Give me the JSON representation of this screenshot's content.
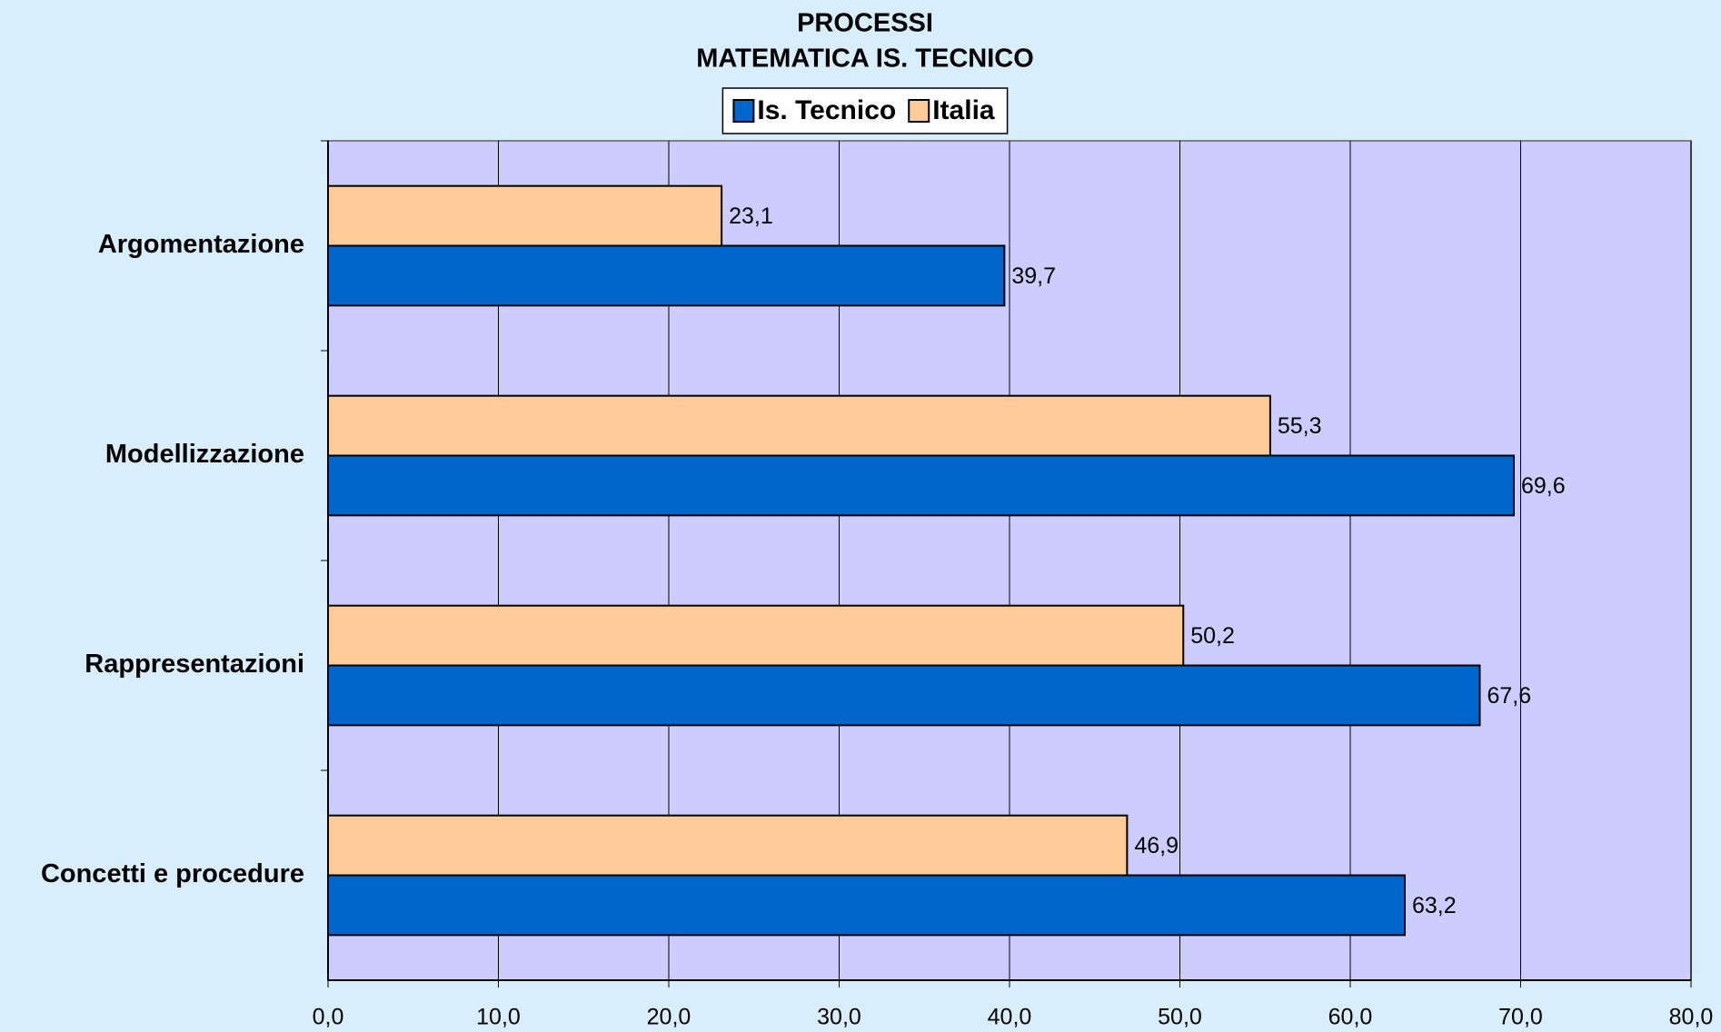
{
  "chart_data": {
    "type": "hbar",
    "title": [
      "PROCESSI",
      "MATEMATICA IS. TECNICO"
    ],
    "categories": [
      "Argomentazione",
      "Modellizzazione",
      "Rappresentazioni",
      "Concetti e procedure"
    ],
    "series": [
      {
        "name": "Is. Tecnico",
        "color": "#0066cc",
        "values": [
          39.7,
          69.6,
          67.6,
          63.2
        ],
        "value_labels": [
          "39,7",
          "69,6",
          "67,6",
          "63,2"
        ]
      },
      {
        "name": "Italia",
        "color": "#ffcc99",
        "values": [
          23.1,
          55.3,
          50.2,
          46.9
        ],
        "value_labels": [
          "23,1",
          "55,3",
          "50,2",
          "46,9"
        ]
      }
    ],
    "xlim": [
      0,
      80
    ],
    "xticks": [
      {
        "value": 0,
        "label": "0,0"
      },
      {
        "value": 10,
        "label": "10,0"
      },
      {
        "value": 20,
        "label": "20,0"
      },
      {
        "value": 30,
        "label": "30,0"
      },
      {
        "value": 40,
        "label": "40,0"
      },
      {
        "value": 50,
        "label": "50,0"
      },
      {
        "value": 60,
        "label": "60,0"
      },
      {
        "value": 70,
        "label": "70,0"
      },
      {
        "value": 80,
        "label": "80,0"
      }
    ],
    "grid": true,
    "legend": "top",
    "plot_background": "#ccccff"
  }
}
